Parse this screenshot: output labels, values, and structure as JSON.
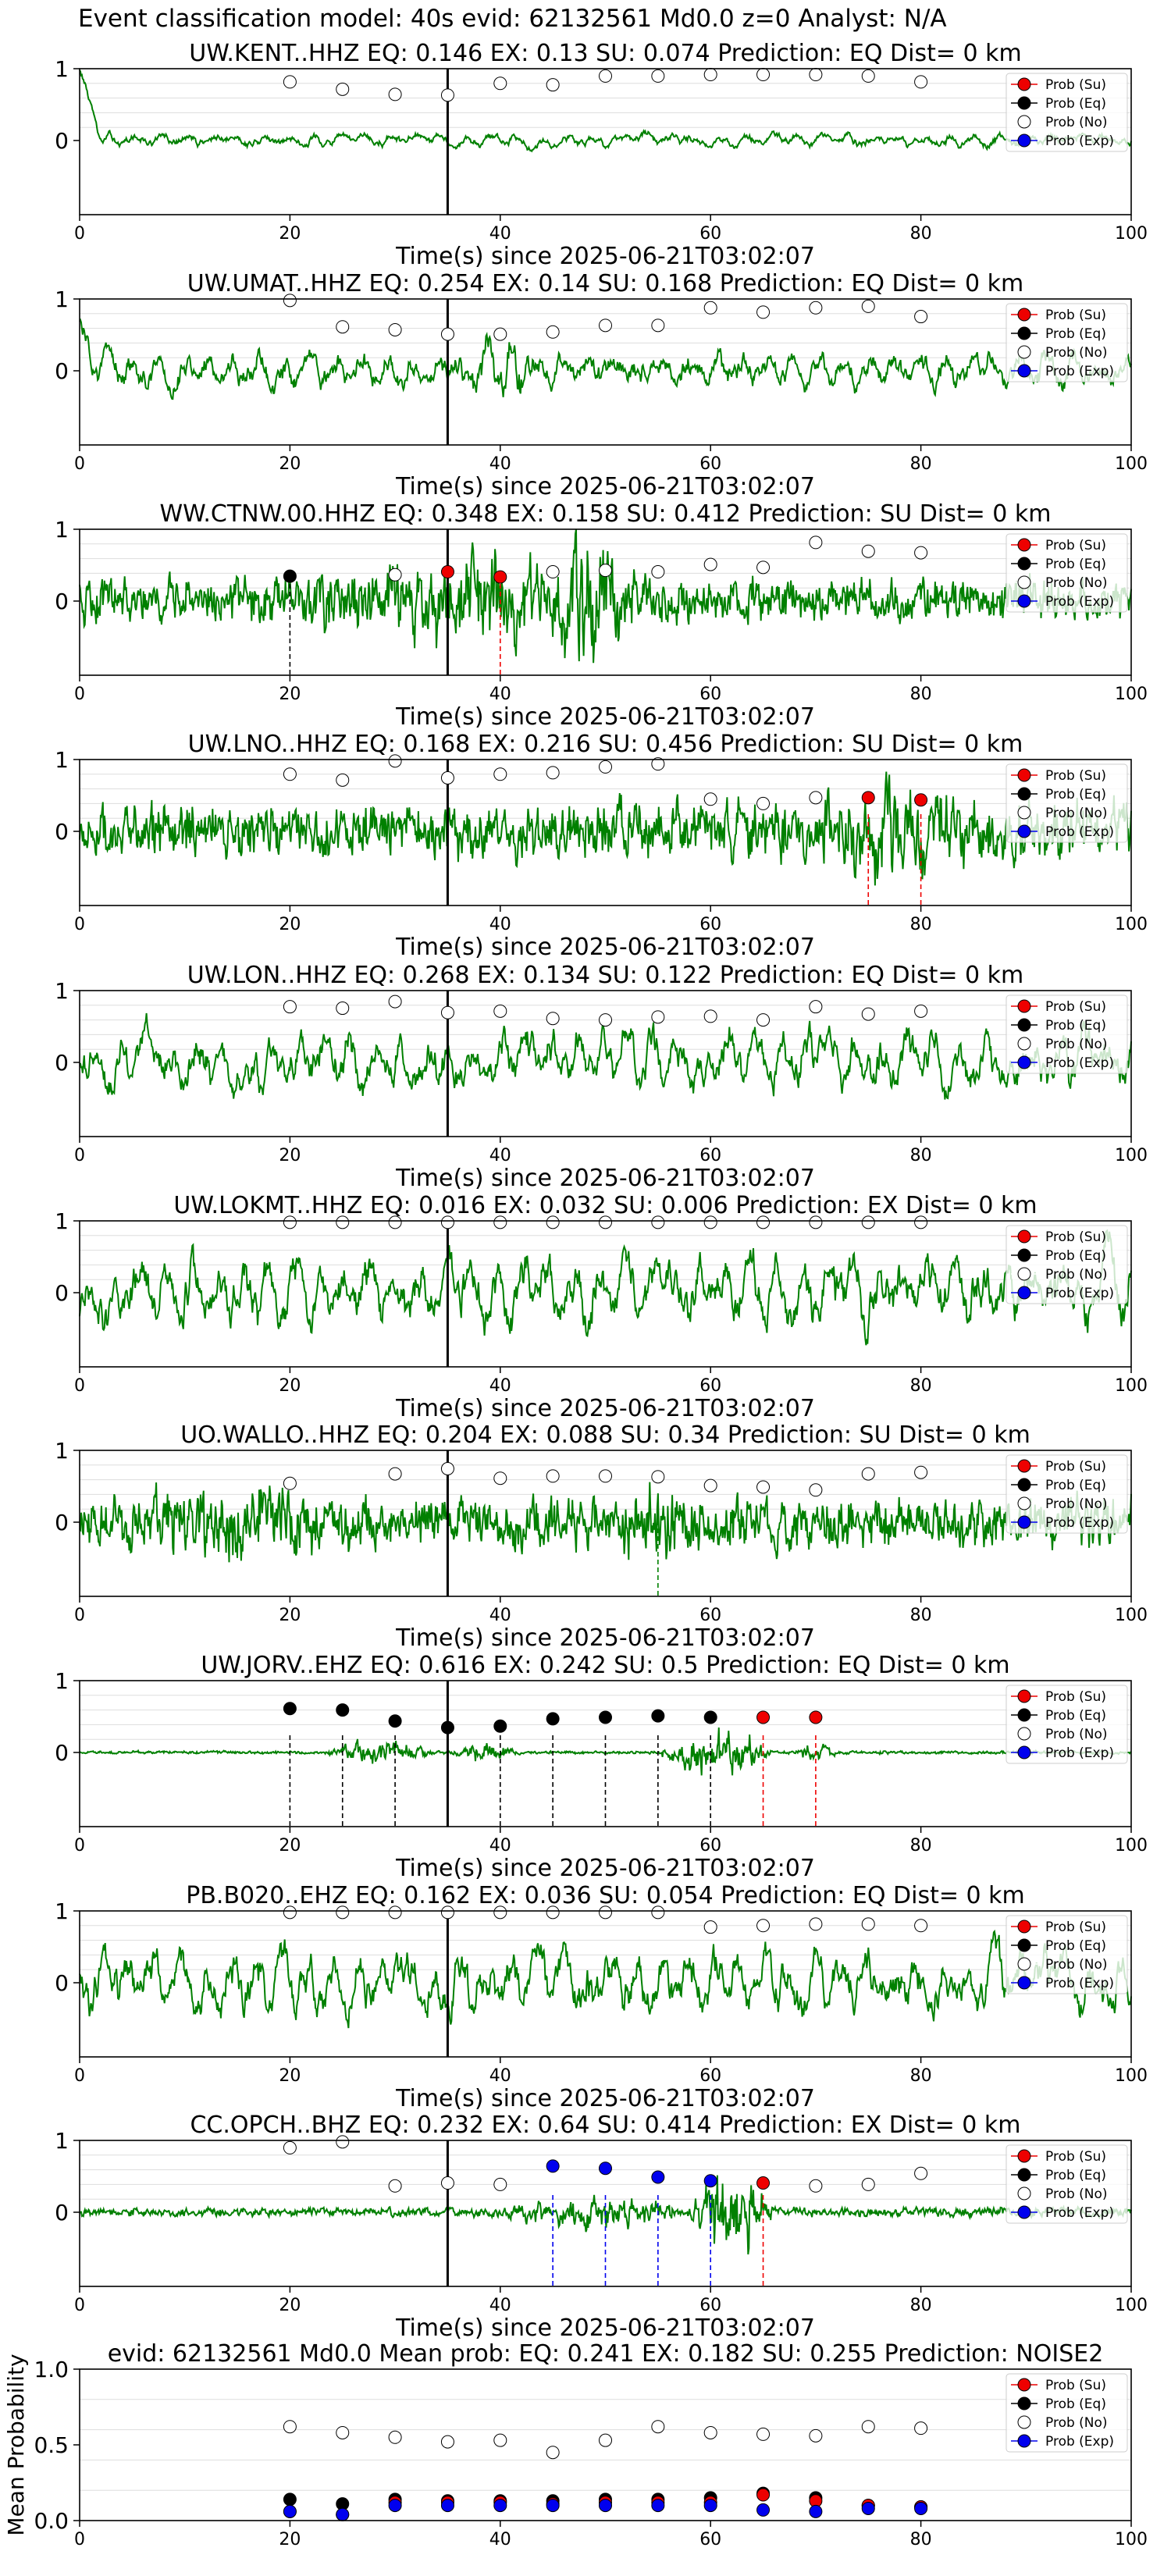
{
  "header": "Event classification model: 40s evid: 62132561 Md0.0 z=0 Analyst: N/A",
  "legend_labels": [
    "Prob (Su)",
    "Prob (Eq)",
    "Prob (No)",
    "Prob (Exp)"
  ],
  "colors": {
    "su": "#ee0000",
    "eq": "#000000",
    "no": "#ffffff",
    "ex": "#0000ee",
    "trace": "#008000",
    "pick": "#000000"
  },
  "chart_data": [
    {
      "type": "line",
      "title": "UW.KENT..HHZ   EQ: 0.146  EX: 0.13  SU: 0.074   Prediction: EQ    Dist= 0 km",
      "xlabel": "Time(s) since 2025-06-21T03:02:07",
      "xlim": [
        0,
        100
      ],
      "ylim": [
        -1,
        1
      ],
      "xticks": [
        "0",
        "20",
        "40",
        "60",
        "80",
        "100"
      ],
      "yticks": [
        "1",
        "0"
      ],
      "pick_time": 35,
      "waveform": {
        "amplitude": 0.12,
        "style": "smooth",
        "envelope": [],
        "start_spike": 1.0
      },
      "windows": [
        20,
        25,
        30,
        35,
        40,
        45,
        50,
        55,
        60,
        65,
        70,
        75,
        80
      ],
      "prob_no": [
        0.82,
        0.72,
        0.65,
        0.64,
        0.8,
        0.78,
        0.9,
        0.9,
        0.92,
        0.92,
        0.92,
        0.9,
        0.82
      ],
      "markers": [],
      "dashed": []
    },
    {
      "type": "line",
      "title": "UW.UMAT..HHZ   EQ: 0.254  EX: 0.14  SU: 0.168   Prediction: EQ    Dist= 0 km",
      "xlabel": "Time(s) since 2025-06-21T03:02:07",
      "xlim": [
        0,
        100
      ],
      "ylim": [
        -1,
        1
      ],
      "xticks": [
        "0",
        "20",
        "40",
        "60",
        "80",
        "100"
      ],
      "yticks": [
        "1",
        "0"
      ],
      "pick_time": 35,
      "waveform": {
        "amplitude": 0.35,
        "style": "smooth",
        "envelope": [
          [
            35,
            45,
            1.8
          ]
        ],
        "start_spike": 0.6
      },
      "windows": [
        20,
        25,
        30,
        35,
        40,
        45,
        50,
        55,
        60,
        65,
        70,
        75,
        80
      ],
      "prob_no": [
        0.98,
        0.62,
        0.58,
        0.52,
        0.52,
        0.55,
        0.64,
        0.64,
        0.88,
        0.82,
        0.88,
        0.9,
        0.76
      ],
      "markers": [],
      "dashed": []
    },
    {
      "type": "line",
      "title": "WW.CTNW.00.HHZ   EQ: 0.348  EX: 0.158  SU: 0.412   Prediction: SU    Dist= 0 km",
      "xlabel": "Time(s) since 2025-06-21T03:02:07",
      "xlim": [
        0,
        100
      ],
      "ylim": [
        -1,
        1
      ],
      "xticks": [
        "0",
        "20",
        "40",
        "60",
        "80",
        "100"
      ],
      "yticks": [
        "1",
        "0"
      ],
      "pick_time": 35,
      "waveform": {
        "amplitude": 0.3,
        "style": "noisy",
        "envelope": [
          [
            20,
            55,
            2.0
          ],
          [
            45,
            52,
            3.2
          ]
        ],
        "start_spike": 0
      },
      "windows": [
        20,
        25,
        30,
        35,
        40,
        45,
        50,
        55,
        60,
        65,
        70,
        75,
        80
      ],
      "prob_no": [
        null,
        null,
        0.38,
        null,
        null,
        0.42,
        0.44,
        0.42,
        0.52,
        0.48,
        0.82,
        0.7,
        0.68
      ],
      "markers": [
        {
          "t": 20,
          "p": 0.36,
          "cls": "eq"
        },
        {
          "t": 35,
          "p": 0.42,
          "cls": "su"
        },
        {
          "t": 40,
          "p": 0.35,
          "cls": "su"
        }
      ],
      "dashed": [
        {
          "t": 20,
          "cls": "eq"
        },
        {
          "t": 40,
          "cls": "su"
        }
      ]
    },
    {
      "type": "line",
      "title": "UW.LNO..HHZ   EQ: 0.168  EX: 0.216  SU: 0.456   Prediction: SU    Dist= 0 km",
      "xlabel": "Time(s) since 2025-06-21T03:02:07",
      "xlim": [
        0,
        100
      ],
      "ylim": [
        -1,
        1
      ],
      "xticks": [
        "0",
        "20",
        "40",
        "60",
        "80",
        "100"
      ],
      "yticks": [
        "1",
        "0"
      ],
      "pick_time": 35,
      "waveform": {
        "amplitude": 0.38,
        "style": "noisy",
        "envelope": [
          [
            68,
            85,
            1.7
          ]
        ],
        "start_spike": 0
      },
      "windows": [
        20,
        25,
        30,
        35,
        40,
        45,
        50,
        55,
        60,
        65,
        70,
        75,
        80
      ],
      "prob_no": [
        0.8,
        0.72,
        0.98,
        0.75,
        0.8,
        0.82,
        0.9,
        0.94,
        0.46,
        0.4,
        0.48,
        null,
        null
      ],
      "markers": [
        {
          "t": 75,
          "p": 0.48,
          "cls": "su"
        },
        {
          "t": 80,
          "p": 0.45,
          "cls": "su"
        }
      ],
      "dashed": [
        {
          "t": 75,
          "cls": "su"
        },
        {
          "t": 80,
          "cls": "su"
        }
      ]
    },
    {
      "type": "line",
      "title": "UW.LON..HHZ   EQ: 0.268  EX: 0.134  SU: 0.122   Prediction: EQ    Dist= 0 km",
      "xlabel": "Time(s) since 2025-06-21T03:02:07",
      "xlim": [
        0,
        100
      ],
      "ylim": [
        -1,
        1
      ],
      "xticks": [
        "0",
        "20",
        "40",
        "60",
        "80",
        "100"
      ],
      "yticks": [
        "1",
        "0"
      ],
      "pick_time": 35,
      "waveform": {
        "amplitude": 0.55,
        "style": "smooth",
        "envelope": [],
        "start_spike": 0
      },
      "windows": [
        20,
        25,
        30,
        35,
        40,
        45,
        50,
        55,
        60,
        65,
        70,
        75,
        80
      ],
      "prob_no": [
        0.78,
        0.76,
        0.85,
        0.7,
        0.72,
        0.62,
        0.6,
        0.64,
        0.65,
        0.6,
        0.78,
        0.68,
        0.72
      ],
      "markers": [],
      "dashed": []
    },
    {
      "type": "line",
      "title": "UW.LOKMT..HHZ   EQ: 0.016  EX: 0.032  SU: 0.006   Prediction: EX    Dist= 0 km",
      "xlabel": "Time(s) since 2025-06-21T03:02:07",
      "xlim": [
        0,
        100
      ],
      "ylim": [
        -1,
        1
      ],
      "xticks": [
        "0",
        "20",
        "40",
        "60",
        "80",
        "100"
      ],
      "yticks": [
        "1",
        "0"
      ],
      "pick_time": 35,
      "waveform": {
        "amplitude": 0.65,
        "style": "smooth",
        "envelope": [],
        "start_spike": 0
      },
      "windows": [
        20,
        25,
        30,
        35,
        40,
        45,
        50,
        55,
        60,
        65,
        70,
        75,
        80
      ],
      "prob_no": [
        0.98,
        0.98,
        0.98,
        0.98,
        0.98,
        0.98,
        0.98,
        0.98,
        0.98,
        0.98,
        0.98,
        0.98,
        0.98
      ],
      "markers": [],
      "dashed": []
    },
    {
      "type": "line",
      "title": "UO.WALLO..HHZ   EQ: 0.204  EX: 0.088  SU: 0.34   Prediction: SU    Dist= 0 km",
      "xlabel": "Time(s) since 2025-06-21T03:02:07",
      "xlim": [
        0,
        100
      ],
      "ylim": [
        -1,
        1
      ],
      "xticks": [
        "0",
        "20",
        "40",
        "60",
        "80",
        "100"
      ],
      "yticks": [
        "1",
        "0"
      ],
      "pick_time": 35,
      "waveform": {
        "amplitude": 0.35,
        "style": "noisy",
        "envelope": [
          [
            5,
            25,
            1.6
          ],
          [
            50,
            60,
            1.4
          ]
        ],
        "start_spike": 0
      },
      "windows": [
        20,
        25,
        30,
        35,
        40,
        45,
        50,
        55,
        60,
        65,
        70,
        75,
        80
      ],
      "prob_no": [
        0.55,
        null,
        0.68,
        0.75,
        0.62,
        0.65,
        0.65,
        0.64,
        0.52,
        0.5,
        0.46,
        0.68,
        0.7
      ],
      "markers": [],
      "dashed": [
        {
          "t": 55,
          "cls": "trace"
        }
      ]
    },
    {
      "type": "line",
      "title": "UW.JORV..EHZ   EQ: 0.616  EX: 0.242  SU: 0.5   Prediction: EQ    Dist= 0 km",
      "xlabel": "Time(s) since 2025-06-21T03:02:07",
      "xlim": [
        0,
        100
      ],
      "ylim": [
        -1,
        1
      ],
      "xticks": [
        "0",
        "20",
        "40",
        "60",
        "80",
        "100"
      ],
      "yticks": [
        "1",
        "0"
      ],
      "pick_time": 35,
      "waveform": {
        "amplitude": 0.02,
        "style": "noisy",
        "envelope": [
          [
            23,
            34,
            8
          ],
          [
            35,
            42,
            6
          ],
          [
            55,
            66,
            16
          ],
          [
            68,
            72,
            6
          ]
        ],
        "start_spike": 0
      },
      "windows": [
        20,
        25,
        30,
        35,
        40,
        45,
        50,
        55,
        60,
        65,
        70,
        75,
        80
      ],
      "prob_no": [],
      "markers": [
        {
          "t": 20,
          "p": 0.62,
          "cls": "eq"
        },
        {
          "t": 25,
          "p": 0.6,
          "cls": "eq"
        },
        {
          "t": 30,
          "p": 0.45,
          "cls": "eq"
        },
        {
          "t": 35,
          "p": 0.36,
          "cls": "eq"
        },
        {
          "t": 40,
          "p": 0.38,
          "cls": "eq"
        },
        {
          "t": 45,
          "p": 0.48,
          "cls": "eq"
        },
        {
          "t": 50,
          "p": 0.5,
          "cls": "eq"
        },
        {
          "t": 55,
          "p": 0.52,
          "cls": "eq"
        },
        {
          "t": 60,
          "p": 0.5,
          "cls": "eq"
        },
        {
          "t": 65,
          "p": 0.5,
          "cls": "su"
        },
        {
          "t": 70,
          "p": 0.5,
          "cls": "su"
        }
      ],
      "dashed": [
        {
          "t": 20,
          "cls": "eq"
        },
        {
          "t": 25,
          "cls": "eq"
        },
        {
          "t": 30,
          "cls": "eq"
        },
        {
          "t": 40,
          "cls": "eq"
        },
        {
          "t": 45,
          "cls": "eq"
        },
        {
          "t": 50,
          "cls": "eq"
        },
        {
          "t": 55,
          "cls": "eq"
        },
        {
          "t": 60,
          "cls": "eq"
        },
        {
          "t": 65,
          "cls": "su"
        },
        {
          "t": 70,
          "cls": "su"
        }
      ]
    },
    {
      "type": "line",
      "title": "PB.B020..EHZ   EQ: 0.162  EX: 0.036  SU: 0.054   Prediction: EQ    Dist= 0 km",
      "xlabel": "Time(s) since 2025-06-21T03:02:07",
      "xlim": [
        0,
        100
      ],
      "ylim": [
        -1,
        1
      ],
      "xticks": [
        "0",
        "20",
        "40",
        "60",
        "80",
        "100"
      ],
      "yticks": [
        "1",
        "0"
      ],
      "pick_time": 35,
      "waveform": {
        "amplitude": 0.6,
        "style": "smooth",
        "envelope": [],
        "start_spike": 0
      },
      "windows": [
        20,
        25,
        30,
        35,
        40,
        45,
        50,
        55,
        60,
        65,
        70,
        75,
        80
      ],
      "prob_no": [
        0.98,
        0.98,
        0.98,
        0.98,
        0.98,
        0.98,
        0.98,
        0.98,
        0.78,
        0.8,
        0.82,
        0.82,
        0.8
      ],
      "markers": [],
      "dashed": []
    },
    {
      "type": "line",
      "title": "CC.OPCH..BHZ   EQ: 0.232  EX: 0.64  SU: 0.414   Prediction: EX    Dist= 0 km",
      "xlabel": "Time(s) since 2025-06-21T03:02:07",
      "xlim": [
        0,
        100
      ],
      "ylim": [
        -1,
        1
      ],
      "xticks": [
        "0",
        "20",
        "40",
        "60",
        "80",
        "100"
      ],
      "yticks": [
        "1",
        "0"
      ],
      "pick_time": 35,
      "waveform": {
        "amplitude": 0.06,
        "style": "noisy",
        "envelope": [
          [
            40,
            58,
            3.5
          ],
          [
            58,
            66,
            10
          ]
        ],
        "start_spike": 0
      },
      "windows": [
        20,
        25,
        30,
        35,
        40,
        45,
        50,
        55,
        60,
        65,
        70,
        75,
        80
      ],
      "prob_no": [
        0.9,
        0.98,
        0.38,
        0.42,
        0.4,
        null,
        null,
        null,
        null,
        null,
        0.38,
        0.4,
        0.55
      ],
      "markers": [
        {
          "t": 45,
          "p": 0.65,
          "cls": "ex"
        },
        {
          "t": 50,
          "p": 0.62,
          "cls": "ex"
        },
        {
          "t": 55,
          "p": 0.5,
          "cls": "ex"
        },
        {
          "t": 60,
          "p": 0.45,
          "cls": "ex"
        },
        {
          "t": 65,
          "p": 0.42,
          "cls": "su"
        }
      ],
      "dashed": [
        {
          "t": 45,
          "cls": "ex"
        },
        {
          "t": 50,
          "cls": "ex"
        },
        {
          "t": 55,
          "cls": "ex"
        },
        {
          "t": 60,
          "cls": "ex"
        },
        {
          "t": 65,
          "cls": "su"
        }
      ]
    },
    {
      "type": "scatter",
      "title": "evid: 62132561   Md0.0   Mean prob:   EQ: 0.241  EX: 0.182  SU: 0.255   Prediction: NOISE2",
      "ylabel": "Mean Probability",
      "xlim": [
        0,
        100
      ],
      "ylim": [
        0,
        1
      ],
      "xticks": [
        "0",
        "20",
        "40",
        "60",
        "80",
        "100"
      ],
      "yticks": [
        "1.0",
        "0.5",
        "0.0"
      ],
      "x": [
        20,
        25,
        30,
        35,
        40,
        45,
        50,
        55,
        60,
        65,
        70,
        75,
        80
      ],
      "series": [
        {
          "cls": "no",
          "values": [
            0.62,
            0.58,
            0.55,
            0.52,
            0.53,
            0.45,
            0.53,
            0.62,
            0.58,
            0.57,
            0.56,
            0.62,
            0.61
          ]
        },
        {
          "cls": "eq",
          "values": [
            0.14,
            0.11,
            0.14,
            0.13,
            0.13,
            0.13,
            0.14,
            0.14,
            0.15,
            0.18,
            0.15,
            0.1,
            0.09
          ]
        },
        {
          "cls": "su",
          "values": [
            0.06,
            0.04,
            0.12,
            0.12,
            0.12,
            0.11,
            0.12,
            0.12,
            0.12,
            0.17,
            0.13,
            0.1,
            0.09
          ]
        },
        {
          "cls": "ex",
          "values": [
            0.06,
            0.04,
            0.1,
            0.1,
            0.1,
            0.1,
            0.1,
            0.1,
            0.1,
            0.07,
            0.06,
            0.08,
            0.08
          ]
        }
      ]
    }
  ]
}
